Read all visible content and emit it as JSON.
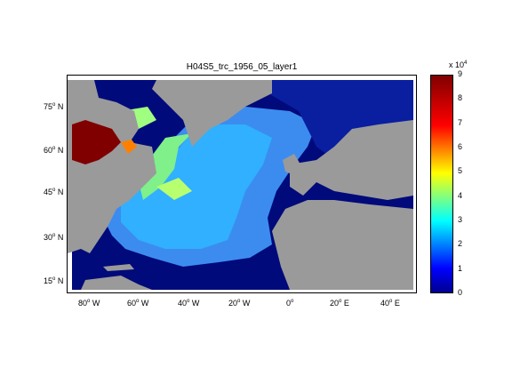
{
  "map": {
    "title": "H04S5_trc_1956_05_layer1",
    "lat_labels": [
      {
        "deg": "75",
        "hem": "N"
      },
      {
        "deg": "60",
        "hem": "N"
      },
      {
        "deg": "45",
        "hem": "N"
      },
      {
        "deg": "30",
        "hem": "N"
      },
      {
        "deg": "15",
        "hem": "N"
      }
    ],
    "lon_labels": [
      {
        "deg": "80",
        "hem": "W"
      },
      {
        "deg": "60",
        "hem": "W"
      },
      {
        "deg": "40",
        "hem": "W"
      },
      {
        "deg": "20",
        "hem": "W"
      },
      {
        "deg": "0",
        "hem": ""
      },
      {
        "deg": "20",
        "hem": "E"
      },
      {
        "deg": "40",
        "hem": "E"
      }
    ],
    "colors": {
      "land": "#9a9a9a",
      "ocean_low": "#00008f",
      "ocean_mid": "#0080ff",
      "high": "#800000"
    }
  },
  "colorbar": {
    "exponent_prefix": "x 10",
    "exponent_power": "4",
    "ticks": [
      "9",
      "8",
      "7",
      "6",
      "5",
      "4",
      "3",
      "2",
      "1",
      "0"
    ],
    "range": [
      0,
      9
    ]
  }
}
